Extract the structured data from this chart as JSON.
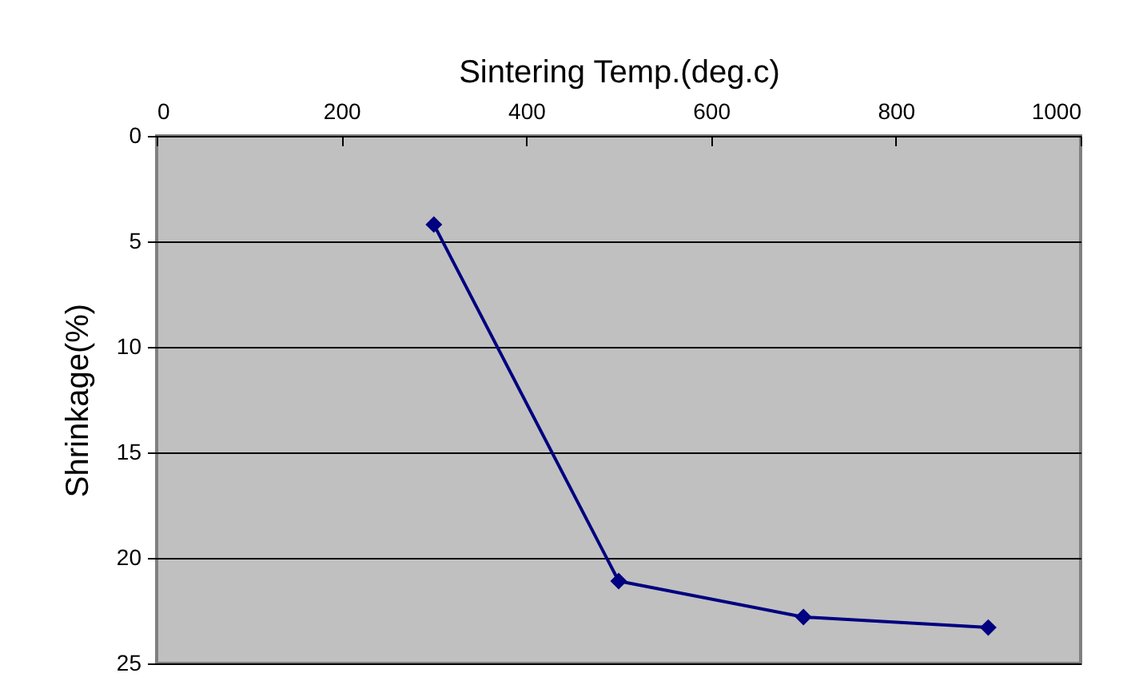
{
  "chart_data": {
    "type": "line",
    "xlabel": "Sintering Temp.(deg.c)",
    "ylabel": "Shrinkage(%)",
    "x": [
      300,
      500,
      700,
      900
    ],
    "series": [
      {
        "color": "#000080",
        "values": [
          4.2,
          21.1,
          22.8,
          23.3
        ]
      }
    ],
    "xlim": [
      0,
      1000
    ],
    "xticks": [
      0,
      200,
      400,
      600,
      800,
      1000
    ],
    "ylim": [
      25,
      0
    ],
    "yticks": [
      0,
      5,
      10,
      15,
      20,
      25
    ],
    "grid": "y",
    "marker": "diamond",
    "legend": false
  }
}
